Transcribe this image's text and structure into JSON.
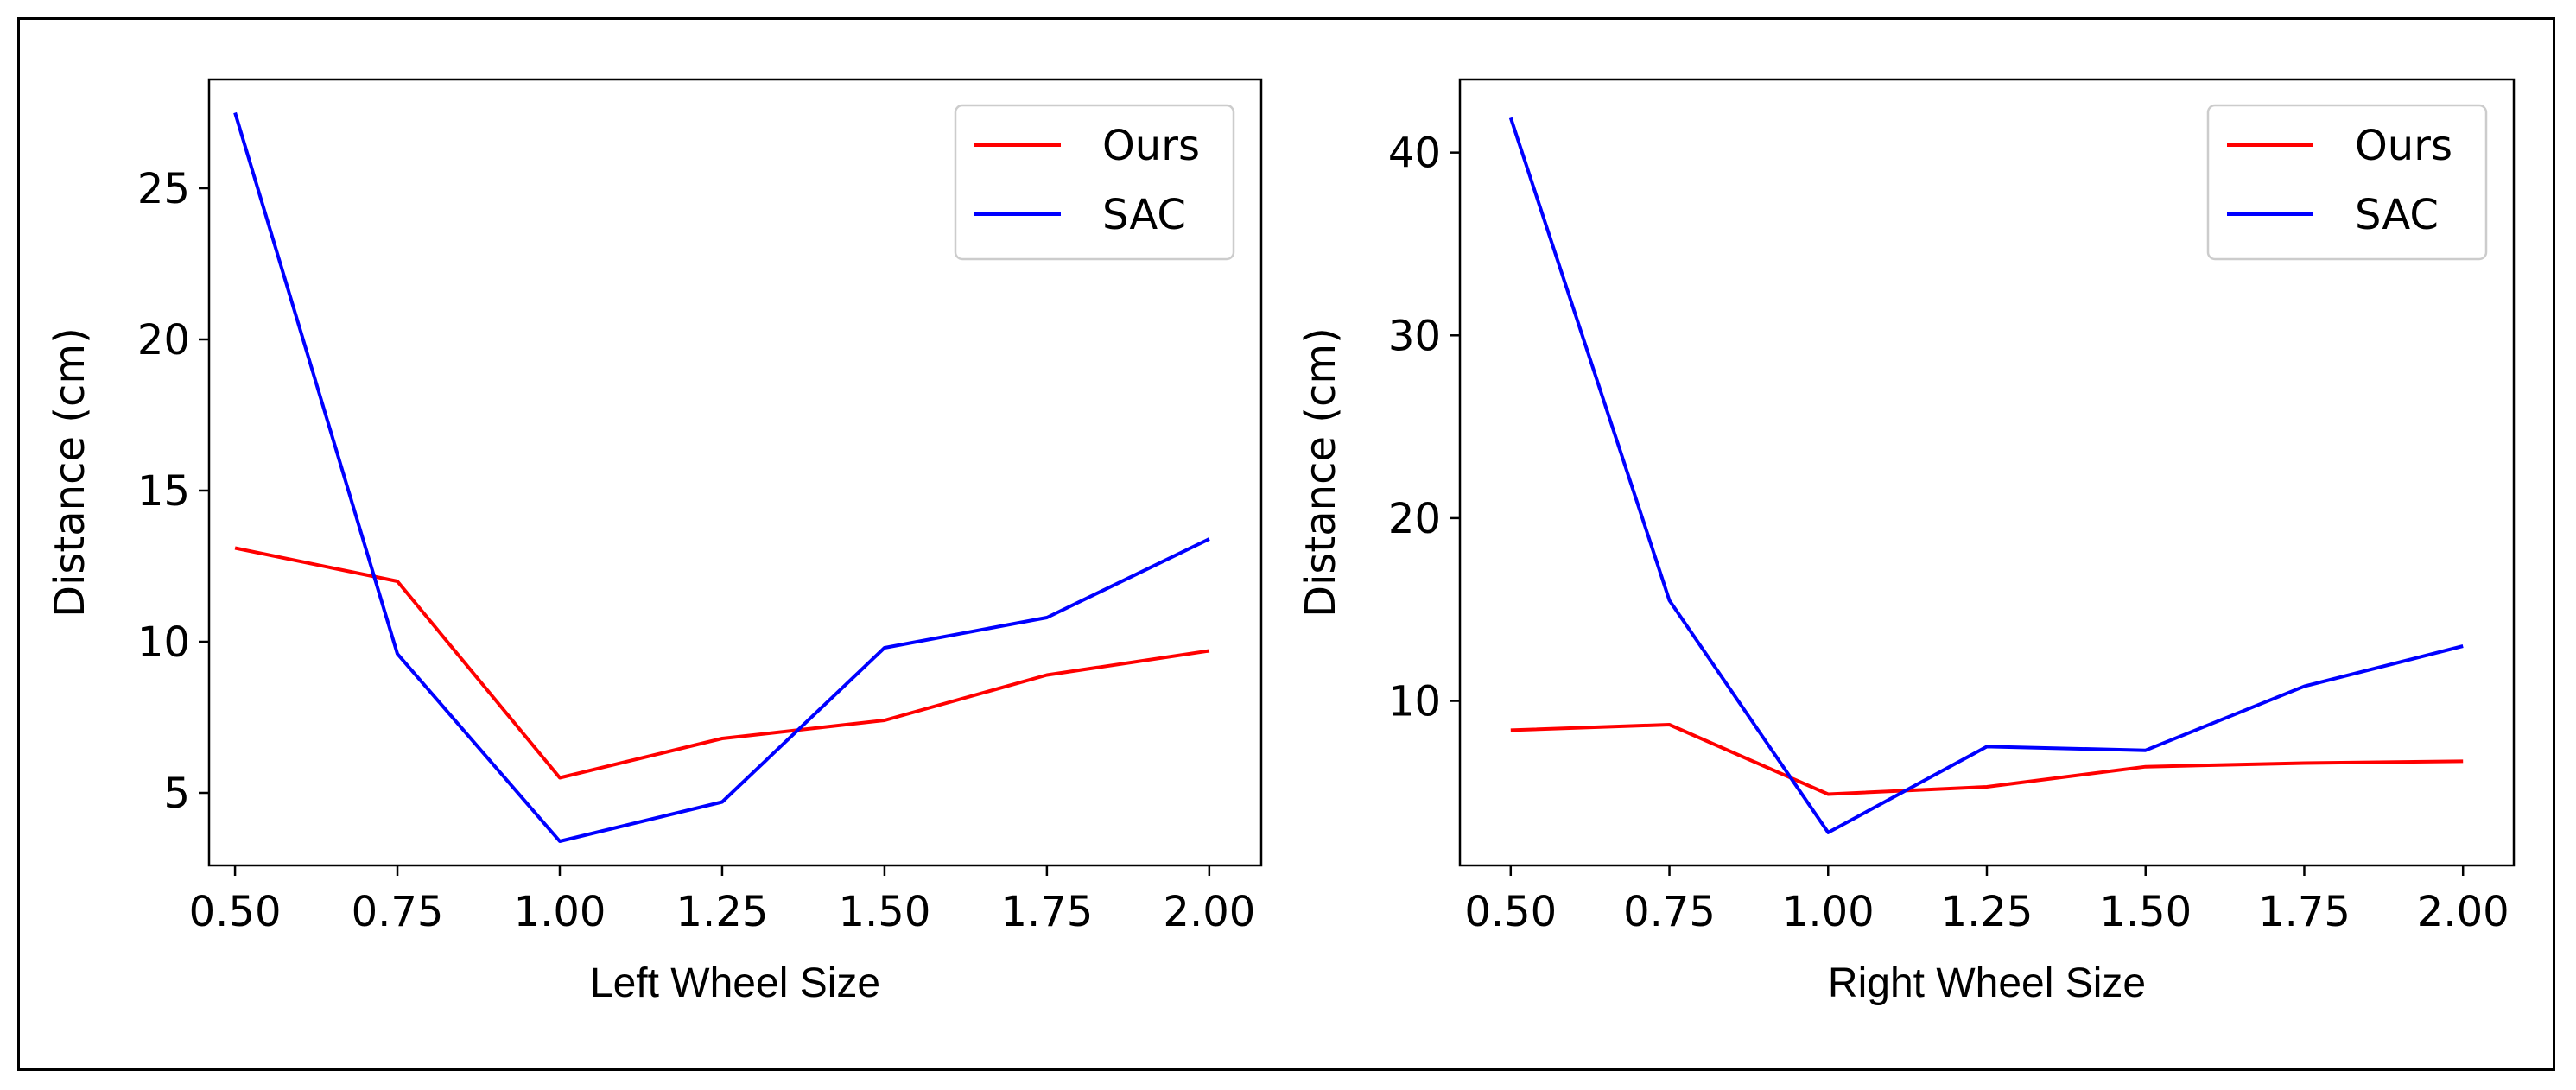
{
  "chart_data": [
    {
      "type": "line",
      "xlabel": "Left Wheel Size",
      "ylabel": "Distance (cm)",
      "xlim": [
        0.46,
        2.08
      ],
      "ylim": [
        2.6,
        28.6
      ],
      "x_ticks": [
        {
          "value": 0.5,
          "label": "0.50"
        },
        {
          "value": 0.75,
          "label": "0.75"
        },
        {
          "value": 1.0,
          "label": "1.00"
        },
        {
          "value": 1.25,
          "label": "1.25"
        },
        {
          "value": 1.5,
          "label": "1.50"
        },
        {
          "value": 1.75,
          "label": "1.75"
        },
        {
          "value": 2.0,
          "label": "2.00"
        }
      ],
      "y_ticks": [
        {
          "value": 5,
          "label": "5"
        },
        {
          "value": 10,
          "label": "10"
        },
        {
          "value": 15,
          "label": "15"
        },
        {
          "value": 20,
          "label": "20"
        },
        {
          "value": 25,
          "label": "25"
        }
      ],
      "grid": false,
      "legend_position": "top-right",
      "series": [
        {
          "name": "Ours",
          "color": "#ff0000",
          "x": [
            0.5,
            0.75,
            1.0,
            1.25,
            1.5,
            1.75,
            2.0
          ],
          "y": [
            13.1,
            12.0,
            5.5,
            6.8,
            7.4,
            8.9,
            9.7
          ]
        },
        {
          "name": "SAC",
          "color": "#0000ff",
          "x": [
            0.5,
            0.75,
            1.0,
            1.25,
            1.5,
            1.75,
            2.0
          ],
          "y": [
            27.5,
            9.6,
            3.4,
            4.7,
            9.8,
            10.8,
            13.4
          ]
        }
      ]
    },
    {
      "type": "line",
      "xlabel": "Right Wheel Size",
      "ylabel": "Distance (cm)",
      "xlim": [
        0.42,
        2.08
      ],
      "ylim": [
        1.0,
        44.0
      ],
      "x_ticks": [
        {
          "value": 0.5,
          "label": "0.50"
        },
        {
          "value": 0.75,
          "label": "0.75"
        },
        {
          "value": 1.0,
          "label": "1.00"
        },
        {
          "value": 1.25,
          "label": "1.25"
        },
        {
          "value": 1.5,
          "label": "1.50"
        },
        {
          "value": 1.75,
          "label": "1.75"
        },
        {
          "value": 2.0,
          "label": "2.00"
        }
      ],
      "y_ticks": [
        {
          "value": 10,
          "label": "10"
        },
        {
          "value": 20,
          "label": "20"
        },
        {
          "value": 30,
          "label": "30"
        },
        {
          "value": 40,
          "label": "40"
        }
      ],
      "grid": false,
      "legend_position": "top-right",
      "series": [
        {
          "name": "Ours",
          "color": "#ff0000",
          "x": [
            0.5,
            0.75,
            1.0,
            1.25,
            1.5,
            1.75,
            2.0
          ],
          "y": [
            8.4,
            8.7,
            4.9,
            5.3,
            6.4,
            6.6,
            6.7
          ]
        },
        {
          "name": "SAC",
          "color": "#0000ff",
          "x": [
            0.5,
            0.75,
            1.0,
            1.25,
            1.5,
            1.75,
            2.0
          ],
          "y": [
            41.9,
            15.5,
            2.8,
            7.5,
            7.3,
            10.8,
            13.0
          ]
        }
      ]
    }
  ]
}
